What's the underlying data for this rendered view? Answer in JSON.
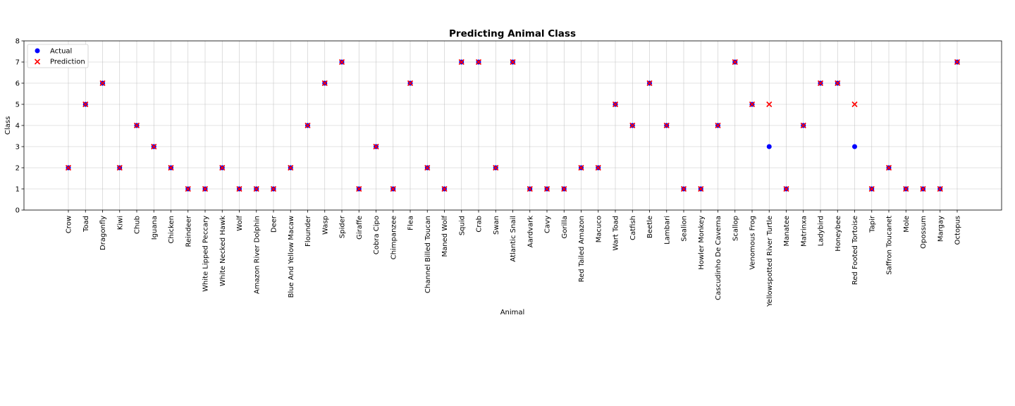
{
  "chart_data": {
    "type": "scatter",
    "title": "Predicting Animal Class",
    "xlabel": "Animal",
    "ylabel": "Class",
    "ylim": [
      0,
      8
    ],
    "yticks": [
      "0",
      "1",
      "2",
      "3",
      "4",
      "5",
      "6",
      "7",
      "8"
    ],
    "grid": true,
    "legend_position": "top-left",
    "categories": [
      "Crow",
      "Toad",
      "Dragonfly",
      "Kiwi",
      "Chub",
      "Iguana",
      "Chicken",
      "Reindeer",
      "White Lipped Peccary",
      "White Necked Hawk",
      "Wolf",
      "Amazon River Dolphin",
      "Deer",
      "Blue And Yellow Macaw",
      "Flounder",
      "Wasp",
      "Spider",
      "Giraffe",
      "Cobra Cipo",
      "Chimpanzee",
      "Flea",
      "Channel Billed Toucan",
      "Maned Wolf",
      "Squid",
      "Crab",
      "Swan",
      "Atlantic Snail",
      "Aardvark",
      "Cavy",
      "Gorilla",
      "Red Tailed Amazon",
      "Macuco",
      "Wart Toad",
      "Catfish",
      "Beetle",
      "Lambari",
      "Sealion",
      "Howler Monkey",
      "Cascudinho De Caverna",
      "Scallop",
      "Venomous Frog",
      "Yellowspotted River Turtle",
      "Manatee",
      "Matrinxa",
      "Ladybird",
      "Honeybee",
      "Red Footed Tortoise",
      "Tapir",
      "Saffron Toucanet",
      "Mole",
      "Opossum",
      "Margay",
      "Octopus"
    ],
    "series": [
      {
        "name": "Actual",
        "marker": "circle",
        "color": "#0000ff",
        "values": [
          2,
          5,
          6,
          2,
          4,
          3,
          2,
          1,
          1,
          2,
          1,
          1,
          1,
          2,
          4,
          6,
          7,
          1,
          3,
          1,
          6,
          2,
          1,
          7,
          7,
          2,
          7,
          1,
          1,
          1,
          2,
          2,
          5,
          4,
          6,
          4,
          1,
          1,
          4,
          7,
          5,
          3,
          1,
          4,
          6,
          6,
          3,
          1,
          2,
          1,
          1,
          1,
          7
        ]
      },
      {
        "name": "Prediction",
        "marker": "x",
        "color": "#ff0000",
        "values": [
          2,
          5,
          6,
          2,
          4,
          3,
          2,
          1,
          1,
          2,
          1,
          1,
          1,
          2,
          4,
          6,
          7,
          1,
          3,
          1,
          6,
          2,
          1,
          7,
          7,
          2,
          7,
          1,
          1,
          1,
          2,
          2,
          5,
          4,
          6,
          4,
          1,
          1,
          4,
          7,
          5,
          5,
          1,
          4,
          6,
          6,
          5,
          1,
          2,
          1,
          1,
          1,
          7
        ]
      }
    ]
  }
}
